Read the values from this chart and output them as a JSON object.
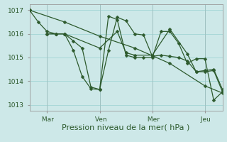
{
  "background_color": "#cde8e8",
  "grid_color": "#a8d8d8",
  "line_color": "#2d5a2d",
  "xlabel": "Pression niveau de la mer( hPa )",
  "ylim": [
    1012.75,
    1017.25
  ],
  "yticks": [
    1013,
    1014,
    1015,
    1016,
    1017
  ],
  "xtick_labels": [
    " Mar",
    " Ven",
    " Mer",
    " Jeu"
  ],
  "xtick_positions": [
    12,
    48,
    84,
    120
  ],
  "xlim": [
    0,
    132
  ],
  "lines": [
    {
      "x": [
        0,
        6,
        12,
        18,
        24,
        30,
        36,
        42,
        48,
        54,
        60,
        66,
        72,
        78,
        84,
        90,
        96,
        102,
        108,
        114,
        120,
        126,
        132
      ],
      "y": [
        1017.0,
        1016.5,
        1016.1,
        1016.0,
        1016.0,
        1015.7,
        1015.4,
        1013.75,
        1013.65,
        1015.3,
        1016.7,
        1016.55,
        1016.0,
        1015.95,
        1015.05,
        1015.1,
        1015.05,
        1015.0,
        1014.85,
        1014.4,
        1014.45,
        1014.5,
        1013.65
      ]
    },
    {
      "x": [
        12,
        18,
        24,
        30,
        36,
        42,
        48,
        54,
        60,
        66,
        72,
        78,
        84,
        90,
        96,
        102,
        108,
        114,
        120,
        126,
        132
      ],
      "y": [
        1016.0,
        1016.0,
        1016.0,
        1015.3,
        1014.2,
        1013.68,
        1013.65,
        1016.75,
        1016.6,
        1015.1,
        1015.0,
        1015.0,
        1015.0,
        1016.1,
        1016.1,
        1015.6,
        1014.75,
        1014.95,
        1014.95,
        1013.2,
        1013.55
      ]
    },
    {
      "x": [
        12,
        18,
        24,
        48,
        60,
        66,
        72,
        84,
        96,
        108,
        114,
        120,
        126,
        132
      ],
      "y": [
        1016.0,
        1016.0,
        1016.0,
        1015.4,
        1016.1,
        1015.2,
        1015.1,
        1015.1,
        1016.2,
        1015.15,
        1014.4,
        1014.4,
        1014.45,
        1013.55
      ]
    },
    {
      "x": [
        0,
        24,
        48,
        72,
        96,
        120,
        132
      ],
      "y": [
        1017.0,
        1016.5,
        1015.9,
        1015.4,
        1014.75,
        1013.8,
        1013.5
      ]
    }
  ],
  "marker_size": 2.5,
  "line_width": 0.9,
  "tick_fontsize": 6.5,
  "xlabel_fontsize": 8
}
